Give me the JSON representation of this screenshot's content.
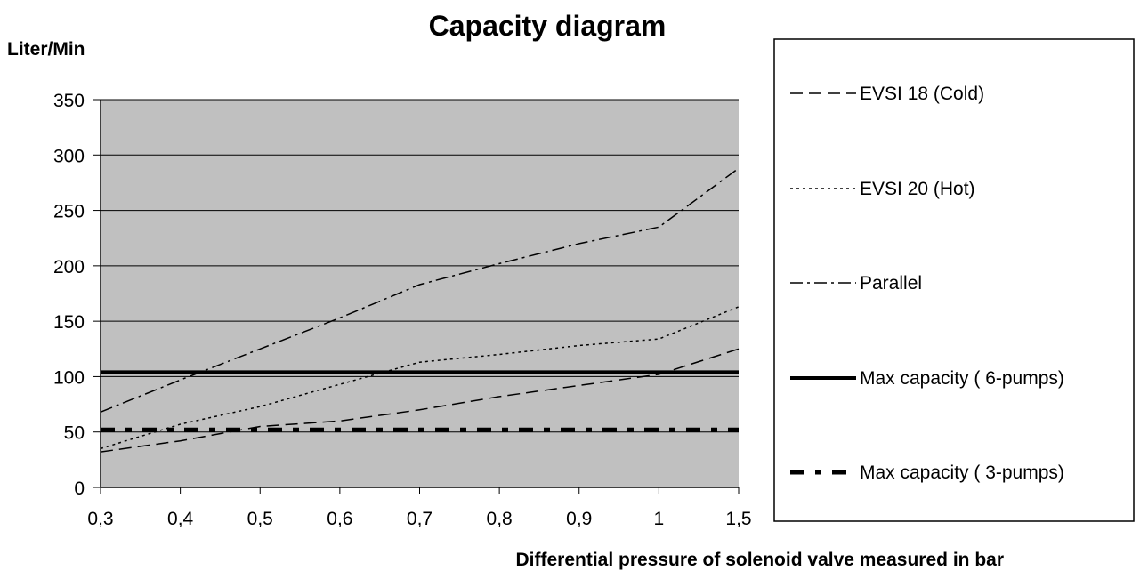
{
  "chart_data": {
    "type": "line",
    "title": "Capacity diagram",
    "ylabel": "Liter/Min",
    "xlabel": "Differential pressure of solenoid valve measured in bar",
    "categories": [
      "0,3",
      "0,4",
      "0,5",
      "0,6",
      "0,7",
      "0,8",
      "0,9",
      "1",
      "1,5"
    ],
    "ylim": [
      0,
      350
    ],
    "yticks": [
      0,
      50,
      100,
      150,
      200,
      250,
      300,
      350
    ],
    "grid": "horizontal",
    "plot_background": "#c0c0c0",
    "legend_position": "right",
    "series": [
      {
        "name": "EVSI 18 (Cold)",
        "style": "dashed",
        "values": [
          32,
          42,
          55,
          60,
          70,
          82,
          92,
          102,
          125
        ]
      },
      {
        "name": "EVSI 20 (Hot)",
        "style": "dotted",
        "values": [
          35,
          57,
          73,
          93,
          113,
          120,
          128,
          134,
          163
        ]
      },
      {
        "name": "Parallel",
        "style": "dashdot",
        "values": [
          68,
          97,
          125,
          153,
          183,
          202,
          220,
          235,
          288
        ]
      },
      {
        "name": "Max capacity ( 6-pumps)",
        "style": "solid-thick",
        "values": [
          104,
          104,
          104,
          104,
          104,
          104,
          104,
          104,
          104
        ]
      },
      {
        "name": "Max capacity ( 3-pumps)",
        "style": "dash-thick",
        "values": [
          52,
          52,
          52,
          52,
          52,
          52,
          52,
          52,
          52
        ]
      }
    ]
  }
}
